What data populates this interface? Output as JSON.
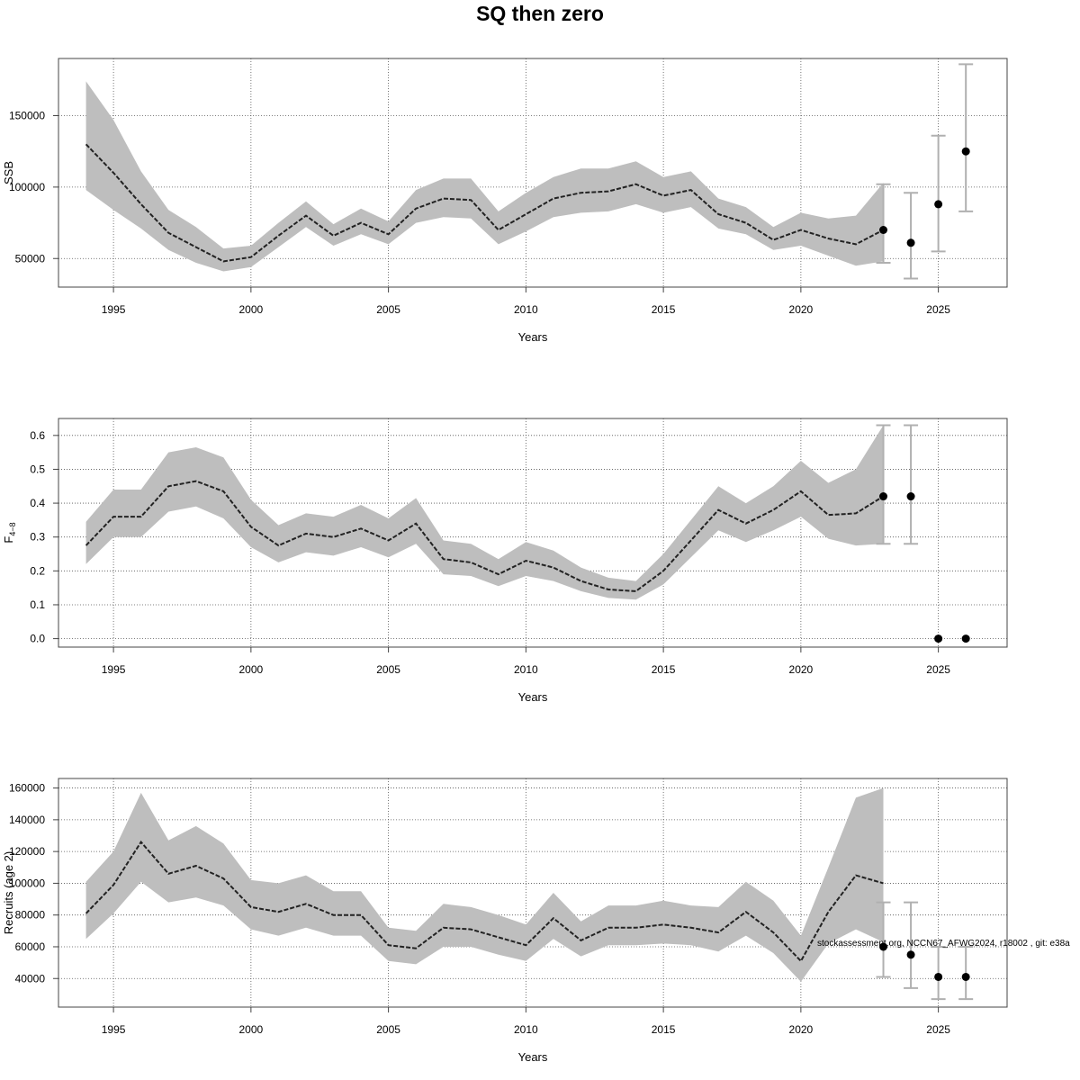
{
  "title": "SQ then zero",
  "watermark": "stockassessment.org, NCCN67_AFWG2024, r18002 , git: e38a",
  "colors": {
    "band": "#bebebe",
    "line": "#222222",
    "point": "#000000",
    "errorbar": "#b0b0b0",
    "grid": "#555555"
  },
  "chart_data": [
    {
      "type": "line",
      "panel": "ssb",
      "xlabel": "Years",
      "ylabel": "SSB",
      "xlim": [
        1993.0,
        2027.5
      ],
      "ylim": [
        30000,
        190000
      ],
      "xticks": [
        1995,
        2000,
        2005,
        2010,
        2015,
        2020,
        2025
      ],
      "yticks": [
        50000,
        100000,
        150000
      ],
      "ytick_labels": [
        "50000",
        "100000",
        "150000"
      ],
      "x": [
        1994,
        1995,
        1996,
        1997,
        1998,
        1999,
        2000,
        2001,
        2002,
        2003,
        2004,
        2005,
        2006,
        2007,
        2008,
        2009,
        2010,
        2011,
        2012,
        2013,
        2014,
        2015,
        2016,
        2017,
        2018,
        2019,
        2020,
        2021,
        2022,
        2023
      ],
      "estimate": [
        130000,
        110000,
        88000,
        68000,
        58000,
        48000,
        51000,
        66000,
        80000,
        66000,
        75000,
        67000,
        85000,
        92000,
        91000,
        70000,
        81000,
        92000,
        96000,
        97000,
        102000,
        94000,
        98000,
        81000,
        75000,
        63000,
        70000,
        64000,
        60000,
        70000
      ],
      "upper": [
        174000,
        147000,
        111000,
        84000,
        72000,
        57000,
        59000,
        75000,
        90000,
        74000,
        85000,
        76000,
        98000,
        106000,
        106000,
        83000,
        96000,
        107000,
        113000,
        113000,
        118000,
        107000,
        111000,
        92000,
        86000,
        72000,
        82000,
        78000,
        80000,
        103000
      ],
      "lower": [
        98000,
        84000,
        71000,
        56000,
        47000,
        41000,
        44000,
        58000,
        72000,
        59000,
        67000,
        60000,
        75000,
        79000,
        78000,
        60000,
        69000,
        79000,
        82000,
        83000,
        88000,
        82000,
        86000,
        71000,
        67000,
        56000,
        59000,
        52000,
        45000,
        48000
      ],
      "forecast": [
        {
          "x": 2023,
          "y": 70000,
          "lo": 47000,
          "hi": 102000
        },
        {
          "x": 2024,
          "y": 61000,
          "lo": 36000,
          "hi": 96000
        },
        {
          "x": 2025,
          "y": 88000,
          "lo": 55000,
          "hi": 136000
        },
        {
          "x": 2026,
          "y": 125000,
          "lo": 83000,
          "hi": 186000
        }
      ]
    },
    {
      "type": "line",
      "panel": "fbar",
      "xlabel": "Years",
      "ylabel": "F",
      "ylabel_sub": "4−8",
      "xlim": [
        1993.0,
        2027.5
      ],
      "ylim": [
        -0.025,
        0.65
      ],
      "xticks": [
        1995,
        2000,
        2005,
        2010,
        2015,
        2020,
        2025
      ],
      "yticks": [
        0.0,
        0.1,
        0.2,
        0.3,
        0.4,
        0.5,
        0.6
      ],
      "ytick_labels": [
        "0.0",
        "0.1",
        "0.2",
        "0.3",
        "0.4",
        "0.5",
        "0.6"
      ],
      "x": [
        1994,
        1995,
        1996,
        1997,
        1998,
        1999,
        2000,
        2001,
        2002,
        2003,
        2004,
        2005,
        2006,
        2007,
        2008,
        2009,
        2010,
        2011,
        2012,
        2013,
        2014,
        2015,
        2016,
        2017,
        2018,
        2019,
        2020,
        2021,
        2022,
        2023
      ],
      "estimate": [
        0.275,
        0.36,
        0.36,
        0.45,
        0.465,
        0.435,
        0.33,
        0.275,
        0.31,
        0.3,
        0.325,
        0.29,
        0.34,
        0.235,
        0.225,
        0.19,
        0.23,
        0.21,
        0.17,
        0.145,
        0.14,
        0.2,
        0.29,
        0.38,
        0.34,
        0.38,
        0.435,
        0.365,
        0.37,
        0.42
      ],
      "upper": [
        0.345,
        0.44,
        0.44,
        0.55,
        0.565,
        0.535,
        0.41,
        0.335,
        0.37,
        0.36,
        0.395,
        0.355,
        0.415,
        0.29,
        0.28,
        0.235,
        0.285,
        0.26,
        0.21,
        0.18,
        0.17,
        0.25,
        0.35,
        0.45,
        0.4,
        0.45,
        0.525,
        0.46,
        0.5,
        0.63
      ],
      "lower": [
        0.22,
        0.3,
        0.3,
        0.375,
        0.39,
        0.355,
        0.27,
        0.225,
        0.255,
        0.245,
        0.27,
        0.24,
        0.28,
        0.19,
        0.185,
        0.155,
        0.185,
        0.17,
        0.14,
        0.12,
        0.115,
        0.16,
        0.24,
        0.32,
        0.285,
        0.32,
        0.36,
        0.295,
        0.275,
        0.28
      ],
      "forecast": [
        {
          "x": 2023,
          "y": 0.42,
          "lo": 0.28,
          "hi": 0.63
        },
        {
          "x": 2024,
          "y": 0.42,
          "lo": 0.28,
          "hi": 0.63
        },
        {
          "x": 2025,
          "y": 0.0,
          "lo": 0.0,
          "hi": 0.0
        },
        {
          "x": 2026,
          "y": 0.0,
          "lo": 0.0,
          "hi": 0.0
        }
      ]
    },
    {
      "type": "line",
      "panel": "recruits",
      "xlabel": "Years",
      "ylabel": "Recruits (age 2)",
      "xlim": [
        1993.0,
        2027.5
      ],
      "ylim": [
        22000,
        166000
      ],
      "xticks": [
        1995,
        2000,
        2005,
        2010,
        2015,
        2020,
        2025
      ],
      "yticks": [
        40000,
        60000,
        80000,
        100000,
        120000,
        140000,
        160000
      ],
      "ytick_labels": [
        "40000",
        "60000",
        "80000",
        "100000",
        "120000",
        "140000",
        "160000"
      ],
      "x": [
        1994,
        1995,
        1996,
        1997,
        1998,
        1999,
        2000,
        2001,
        2002,
        2003,
        2004,
        2005,
        2006,
        2007,
        2008,
        2009,
        2010,
        2011,
        2012,
        2013,
        2014,
        2015,
        2016,
        2017,
        2018,
        2019,
        2020,
        2021,
        2022,
        2023
      ],
      "estimate": [
        81000,
        99000,
        126000,
        106000,
        111000,
        103000,
        85000,
        82000,
        87000,
        80000,
        80000,
        61000,
        59000,
        72000,
        71000,
        66000,
        61000,
        78000,
        64000,
        72000,
        72000,
        74000,
        72000,
        69000,
        82000,
        69000,
        51000,
        82000,
        105000,
        100000
      ],
      "upper": [
        101000,
        120000,
        157000,
        127000,
        136000,
        125000,
        102000,
        100000,
        105000,
        95000,
        95000,
        72000,
        70000,
        87000,
        85000,
        80000,
        74000,
        94000,
        76000,
        86000,
        86000,
        89000,
        86000,
        85000,
        101000,
        89000,
        67000,
        110000,
        154000,
        160000
      ],
      "lower": [
        65000,
        81000,
        101000,
        88000,
        91000,
        86000,
        71000,
        67000,
        72000,
        67000,
        67000,
        51000,
        49000,
        60000,
        60000,
        55000,
        51000,
        65000,
        54000,
        61000,
        61000,
        62000,
        61000,
        57000,
        67000,
        56000,
        38000,
        62000,
        71000,
        63000
      ],
      "forecast": [
        {
          "x": 2023,
          "y": 60000,
          "lo": 41000,
          "hi": 88000
        },
        {
          "x": 2024,
          "y": 55000,
          "lo": 34000,
          "hi": 88000
        },
        {
          "x": 2025,
          "y": 41000,
          "lo": 27000,
          "hi": 60000
        },
        {
          "x": 2026,
          "y": 41000,
          "lo": 27000,
          "hi": 60000
        }
      ]
    }
  ]
}
